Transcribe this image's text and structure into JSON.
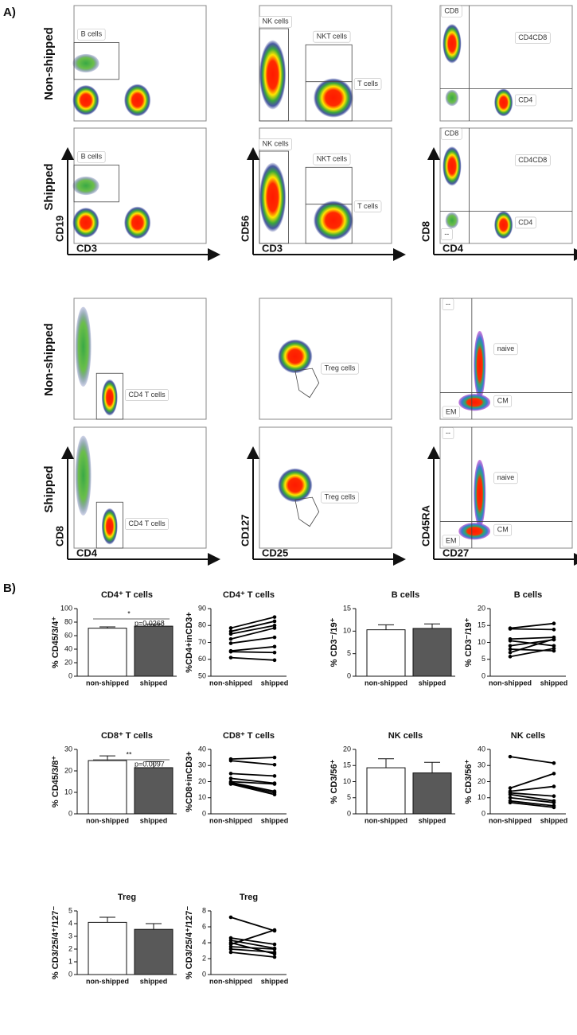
{
  "panel_a": {
    "label": "A)",
    "row_labels": [
      "Non-shipped",
      "Shipped",
      "Non-shipped",
      "Shipped"
    ],
    "plots": [
      {
        "gates": [
          "B cells"
        ]
      },
      {
        "gates": [
          "NK cells",
          "NKT cells",
          "T cells"
        ]
      },
      {
        "gates": [
          "CD8",
          "CD4CD8",
          "CD4"
        ]
      },
      {
        "gates": [
          "B cells"
        ],
        "x_axis": "CD3",
        "y_axis": "CD19"
      },
      {
        "gates": [
          "NK cells",
          "NKT cells",
          "T cells"
        ],
        "x_axis": "CD3",
        "y_axis": "CD56"
      },
      {
        "gates": [
          "CD8",
          "CD4CD8",
          "CD4",
          "--"
        ],
        "x_axis": "CD4",
        "y_axis": "CD8"
      },
      {
        "gates": [
          "CD4 T cells"
        ]
      },
      {
        "gates": [
          "Treg cells"
        ]
      },
      {
        "gates": [
          "--",
          "naive",
          "CM",
          "EM"
        ]
      },
      {
        "gates": [
          "CD4 T cells"
        ],
        "x_axis": "CD4",
        "y_axis": "CD8"
      },
      {
        "gates": [
          "Treg cells"
        ],
        "x_axis": "CD25",
        "y_axis": "CD127"
      },
      {
        "gates": [
          "--",
          "naive",
          "CM",
          "EM"
        ],
        "x_axis": "CD27",
        "y_axis": "CD45RA"
      }
    ]
  },
  "panel_b": {
    "label": "B)"
  },
  "chart_data": [
    {
      "type": "bar",
      "title": "CD4⁺ T cells",
      "y_label": "% CD45/3/4⁺",
      "categories": [
        "non-shipped",
        "shipped"
      ],
      "values": [
        71,
        74
      ],
      "errors": [
        2,
        3
      ],
      "colors": [
        "#ffffff",
        "#595959"
      ],
      "ylim": [
        0,
        100
      ],
      "yticks": [
        0,
        20,
        40,
        60,
        80,
        100
      ],
      "significance": "*",
      "p_value": "p=0.0268"
    },
    {
      "type": "line",
      "title": "CD4⁺ T cells",
      "y_label": "%CD4+inCD3+",
      "categories": [
        "non-shipped",
        "shipped"
      ],
      "color": "#000000",
      "ylim": [
        50,
        90
      ],
      "yticks": [
        50,
        60,
        70,
        80,
        90
      ],
      "series": [
        {
          "values": [
            61,
            59.5
          ]
        },
        {
          "values": [
            64.5,
            64
          ]
        },
        {
          "values": [
            65,
            67.5
          ]
        },
        {
          "values": [
            69.5,
            73
          ]
        },
        {
          "values": [
            72,
            78.5
          ]
        },
        {
          "values": [
            75,
            80
          ]
        },
        {
          "values": [
            76.5,
            82.5
          ]
        },
        {
          "values": [
            78.5,
            85
          ]
        }
      ]
    },
    {
      "type": "bar",
      "title": "B cells",
      "y_label": "% CD3⁻/19⁺",
      "categories": [
        "non-shipped",
        "shipped"
      ],
      "values": [
        10.3,
        10.6
      ],
      "errors": [
        1.1,
        1.0
      ],
      "colors": [
        "#ffffff",
        "#595959"
      ],
      "ylim": [
        0,
        15
      ],
      "yticks": [
        0,
        5,
        10,
        15
      ]
    },
    {
      "type": "line",
      "title": "B cells",
      "y_label": "% CD3⁻/19⁺",
      "categories": [
        "non-shipped",
        "shipped"
      ],
      "color": "#000000",
      "ylim": [
        0,
        20
      ],
      "yticks": [
        0,
        5,
        10,
        15,
        20
      ],
      "series": [
        {
          "values": [
            14.2,
            15.6
          ]
        },
        {
          "values": [
            14,
            13.8
          ]
        },
        {
          "values": [
            11,
            11.5
          ]
        },
        {
          "values": [
            10.5,
            9
          ]
        },
        {
          "values": [
            9,
            10.8
          ]
        },
        {
          "values": [
            8,
            7.5
          ]
        },
        {
          "values": [
            7,
            11
          ]
        },
        {
          "values": [
            5.8,
            8.2
          ]
        }
      ]
    },
    {
      "type": "bar",
      "title": "CD8⁺ T cells",
      "y_label": "% CD45/3/8⁺",
      "categories": [
        "non-shipped",
        "shipped"
      ],
      "values": [
        24.8,
        21.5
      ],
      "errors": [
        2.2,
        2.8
      ],
      "colors": [
        "#ffffff",
        "#595959"
      ],
      "ylim": [
        0,
        30
      ],
      "yticks": [
        0,
        10,
        20,
        30
      ],
      "significance": "**",
      "p_value": "p=0.0097"
    },
    {
      "type": "line",
      "title": "CD8⁺ T cells",
      "y_label": "%CD8+inCD3+",
      "categories": [
        "non-shipped",
        "shipped"
      ],
      "color": "#000000",
      "ylim": [
        0,
        40
      ],
      "yticks": [
        0,
        10,
        20,
        30,
        40
      ],
      "series": [
        {
          "values": [
            34,
            35
          ]
        },
        {
          "values": [
            33,
            30.5
          ]
        },
        {
          "values": [
            25,
            23.5
          ]
        },
        {
          "values": [
            22,
            19
          ]
        },
        {
          "values": [
            20,
            18.5
          ]
        },
        {
          "values": [
            19.5,
            14
          ]
        },
        {
          "values": [
            19,
            13
          ]
        },
        {
          "values": [
            18.5,
            12
          ]
        }
      ]
    },
    {
      "type": "bar",
      "title": "NK cells",
      "y_label": "% CD3/56⁺",
      "categories": [
        "non-shipped",
        "shipped"
      ],
      "values": [
        14.3,
        12.7
      ],
      "errors": [
        2.8,
        3.3
      ],
      "colors": [
        "#ffffff",
        "#595959"
      ],
      "ylim": [
        0,
        20
      ],
      "yticks": [
        0,
        5,
        10,
        15,
        20
      ]
    },
    {
      "type": "line",
      "title": "NK cells",
      "y_label": "% CD3/56⁺",
      "categories": [
        "non-shipped",
        "shipped"
      ],
      "color": "#000000",
      "ylim": [
        0,
        40
      ],
      "yticks": [
        0,
        10,
        20,
        30,
        40
      ],
      "series": [
        {
          "values": [
            35.5,
            31.5
          ]
        },
        {
          "values": [
            16,
            25
          ]
        },
        {
          "values": [
            14,
            17
          ]
        },
        {
          "values": [
            13,
            11
          ]
        },
        {
          "values": [
            12,
            8
          ]
        },
        {
          "values": [
            10,
            7
          ]
        },
        {
          "values": [
            8,
            5
          ]
        },
        {
          "values": [
            7,
            4
          ]
        }
      ]
    },
    {
      "type": "bar",
      "title": "Treg",
      "y_label": "% CD3/25/4⁺/127⁻",
      "categories": [
        "non-shipped",
        "shipped"
      ],
      "values": [
        4.1,
        3.55
      ],
      "errors": [
        0.4,
        0.45
      ],
      "colors": [
        "#ffffff",
        "#595959"
      ],
      "ylim": [
        0,
        5
      ],
      "yticks": [
        0,
        1,
        2,
        3,
        4,
        5
      ]
    },
    {
      "type": "line",
      "title": "Treg",
      "y_label": "% CD3/25/4⁺/127⁻",
      "categories": [
        "non-shipped",
        "shipped"
      ],
      "color": "#000000",
      "ylim": [
        0,
        8
      ],
      "yticks": [
        0,
        2,
        4,
        6,
        8
      ],
      "series": [
        {
          "values": [
            7.2,
            5.5
          ]
        },
        {
          "values": [
            4.6,
            3.8
          ]
        },
        {
          "values": [
            4.3,
            3.3
          ]
        },
        {
          "values": [
            4,
            2.6
          ]
        },
        {
          "values": [
            3.8,
            5.6
          ]
        },
        {
          "values": [
            3.5,
            3.2
          ]
        },
        {
          "values": [
            3.2,
            2.8
          ]
        },
        {
          "values": [
            2.8,
            2.2
          ]
        }
      ]
    }
  ]
}
